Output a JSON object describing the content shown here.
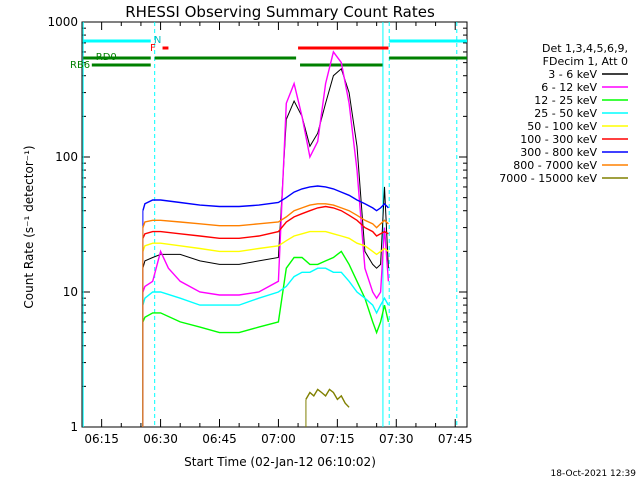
{
  "chart_data": {
    "type": "line",
    "title": "RHESSI Observing Summary Count Rates",
    "xlabel": "Start Time (02-Jan-12 06:10:02)",
    "ylabel": "Count Rate (s⁻¹ detector⁻¹)",
    "yscale": "log",
    "ylim": [
      1,
      1000
    ],
    "xlim_minutes": [
      10,
      78
    ],
    "x_ticks": [
      {
        "min": 15,
        "label": "06:15"
      },
      {
        "min": 30,
        "label": "06:30"
      },
      {
        "min": 45,
        "label": "06:45"
      },
      {
        "min": 60,
        "label": "07:00"
      },
      {
        "min": 75,
        "label": "07:15"
      },
      {
        "min": 90,
        "label": "07:30"
      },
      {
        "min": 105,
        "label": "07:45"
      }
    ],
    "y_ticks": [
      {
        "value": 1,
        "label": "1"
      },
      {
        "value": 10,
        "label": "10"
      },
      {
        "value": 100,
        "label": "100"
      },
      {
        "value": 1000,
        "label": "1000"
      }
    ],
    "legend": {
      "header": [
        "Det 1,3,4,5,6,9,",
        "FDecim 1, Att 0"
      ],
      "placement": "right"
    },
    "footer_timestamp": "18-Oct-2021 12:39",
    "flag_labels": {
      "N": "N",
      "F": "F",
      "RD0": "RD0",
      "RB6": "RB6"
    },
    "series": [
      {
        "name": "3 - 6 keV",
        "color": "#000000",
        "x": [
          25.5,
          26,
          28,
          30,
          35,
          40,
          45,
          50,
          55,
          60,
          62,
          64,
          66,
          68,
          70,
          72,
          74,
          76,
          78,
          80,
          82,
          84,
          85,
          86,
          87,
          88
        ],
        "y": [
          15,
          17,
          18,
          19,
          19,
          17,
          16,
          16,
          17,
          18,
          190,
          260,
          200,
          120,
          150,
          250,
          400,
          450,
          300,
          120,
          20,
          16,
          15,
          16,
          60,
          15
        ]
      },
      {
        "name": "6 - 12 keV",
        "color": "#ff00ff",
        "x": [
          25.5,
          26,
          28,
          30,
          32,
          35,
          40,
          45,
          50,
          55,
          60,
          62,
          64,
          66,
          68,
          70,
          72,
          74,
          76,
          78,
          80,
          82,
          84,
          85,
          86,
          87,
          88
        ],
        "y": [
          10,
          11,
          12,
          20,
          15,
          12,
          10,
          9.5,
          9.5,
          10,
          12,
          250,
          350,
          200,
          100,
          130,
          350,
          600,
          500,
          250,
          80,
          15,
          10,
          9,
          10,
          30,
          12
        ]
      },
      {
        "name": "12 - 25 keV",
        "color": "#00ff00",
        "x": [
          25.5,
          26,
          28,
          30,
          35,
          40,
          45,
          50,
          55,
          60,
          62,
          64,
          66,
          68,
          70,
          72,
          74,
          76,
          78,
          80,
          82,
          84,
          85,
          86,
          87,
          88
        ],
        "y": [
          6,
          6.5,
          7,
          7,
          6,
          5.5,
          5,
          5,
          5.5,
          6,
          15,
          18,
          18,
          16,
          16,
          17,
          18,
          20,
          16,
          12,
          9,
          6,
          5,
          6,
          8,
          6
        ]
      },
      {
        "name": "25 - 50 keV",
        "color": "#00ffff",
        "x": [
          25.5,
          26,
          28,
          30,
          35,
          40,
          45,
          50,
          55,
          60,
          62,
          64,
          66,
          68,
          70,
          72,
          74,
          76,
          78,
          80,
          82,
          84,
          85,
          86,
          87,
          88
        ],
        "y": [
          8,
          9,
          10,
          10,
          9,
          8,
          8,
          8,
          9,
          10,
          11,
          13,
          14,
          14,
          15,
          15,
          14,
          14,
          12,
          10,
          9,
          8,
          7,
          8,
          9,
          8
        ]
      },
      {
        "name": "50 - 100 keV",
        "color": "#ffff00",
        "x": [
          25.5,
          26,
          28,
          30,
          35,
          40,
          45,
          50,
          55,
          60,
          62,
          64,
          66,
          68,
          70,
          72,
          74,
          76,
          78,
          80,
          82,
          84,
          85,
          86,
          87,
          88
        ],
        "y": [
          20,
          22,
          23,
          23,
          22,
          21,
          20,
          20,
          21,
          22,
          24,
          26,
          27,
          28,
          28,
          28,
          27,
          26,
          25,
          23,
          22,
          20,
          19,
          20,
          21,
          20
        ]
      },
      {
        "name": "100 - 300 keV",
        "color": "#ff0000",
        "x": [
          25.5,
          26,
          28,
          30,
          35,
          40,
          45,
          50,
          55,
          60,
          62,
          64,
          66,
          68,
          70,
          72,
          74,
          76,
          78,
          80,
          82,
          84,
          85,
          86,
          87,
          88
        ],
        "y": [
          25,
          27,
          28,
          28,
          27,
          26,
          25,
          25,
          26,
          28,
          33,
          36,
          38,
          40,
          42,
          43,
          42,
          40,
          37,
          34,
          30,
          28,
          26,
          27,
          28,
          27
        ]
      },
      {
        "name": "300 - 800 keV",
        "color": "#0000ff",
        "x": [
          25.5,
          26,
          28,
          30,
          35,
          40,
          45,
          50,
          55,
          60,
          62,
          64,
          66,
          68,
          70,
          72,
          74,
          76,
          78,
          80,
          82,
          84,
          85,
          86,
          87,
          88
        ],
        "y": [
          40,
          45,
          48,
          48,
          46,
          44,
          43,
          43,
          44,
          46,
          50,
          55,
          58,
          60,
          61,
          60,
          58,
          55,
          52,
          48,
          45,
          42,
          40,
          42,
          45,
          42
        ]
      },
      {
        "name": "800 - 7000 keV",
        "color": "#ff8000",
        "x": [
          25.5,
          26,
          28,
          30,
          35,
          40,
          45,
          50,
          55,
          60,
          62,
          64,
          66,
          68,
          70,
          72,
          74,
          76,
          78,
          80,
          82,
          84,
          85,
          86,
          87,
          88
        ],
        "y": [
          30,
          33,
          34,
          34,
          33,
          32,
          31,
          31,
          32,
          33,
          36,
          40,
          42,
          44,
          45,
          45,
          44,
          42,
          40,
          37,
          34,
          32,
          30,
          32,
          34,
          32
        ]
      },
      {
        "name": "7000 - 15000 keV",
        "color": "#808000",
        "x": [
          67,
          68,
          69,
          70,
          71,
          72,
          73,
          74,
          75,
          76,
          77,
          78
        ],
        "y": [
          1.6,
          1.8,
          1.7,
          1.9,
          1.8,
          1.7,
          1.9,
          1.8,
          1.6,
          1.7,
          1.5,
          1.4
        ]
      }
    ]
  }
}
